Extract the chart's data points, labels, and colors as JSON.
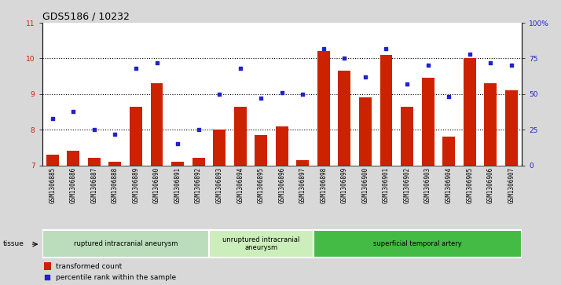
{
  "title": "GDS5186 / 10232",
  "samples": [
    "GSM1306885",
    "GSM1306886",
    "GSM1306887",
    "GSM1306888",
    "GSM1306889",
    "GSM1306890",
    "GSM1306891",
    "GSM1306892",
    "GSM1306893",
    "GSM1306894",
    "GSM1306895",
    "GSM1306896",
    "GSM1306897",
    "GSM1306898",
    "GSM1306899",
    "GSM1306900",
    "GSM1306901",
    "GSM1306902",
    "GSM1306903",
    "GSM1306904",
    "GSM1306905",
    "GSM1306906",
    "GSM1306907"
  ],
  "bar_values": [
    7.3,
    7.4,
    7.2,
    7.1,
    8.65,
    9.3,
    7.1,
    7.2,
    8.0,
    8.65,
    7.85,
    8.1,
    7.15,
    10.2,
    9.65,
    8.9,
    10.1,
    8.65,
    9.45,
    7.8,
    10.0,
    9.3,
    9.1
  ],
  "dot_values": [
    33,
    38,
    25,
    22,
    68,
    72,
    15,
    25,
    50,
    68,
    47,
    51,
    50,
    82,
    75,
    62,
    82,
    57,
    70,
    48,
    78,
    72,
    70
  ],
  "ylim_left": [
    7,
    11
  ],
  "ylim_right": [
    0,
    100
  ],
  "yticks_left": [
    7,
    8,
    9,
    10,
    11
  ],
  "ytick_labels_left": [
    "7",
    "8",
    "9",
    "10",
    "11"
  ],
  "ytick_labels_right": [
    "0",
    "25",
    "50",
    "75",
    "100%"
  ],
  "bar_color": "#cc2200",
  "dot_color": "#2222cc",
  "background_color": "#d8d8d8",
  "plot_bg_color": "#ffffff",
  "groups": [
    {
      "label": "ruptured intracranial aneurysm",
      "start": 0,
      "end": 8,
      "color": "#bbddbb"
    },
    {
      "label": "unruptured intracranial\naneurysm",
      "start": 8,
      "end": 13,
      "color": "#cceebb"
    },
    {
      "label": "superficial temporal artery",
      "start": 13,
      "end": 23,
      "color": "#44bb44"
    }
  ],
  "tissue_label": "tissue",
  "legend_bar_label": "transformed count",
  "legend_dot_label": "percentile rank within the sample",
  "title_fontsize": 9,
  "tick_fontsize": 6.5,
  "xtick_fontsize": 5.5,
  "bar_bottom": 7
}
